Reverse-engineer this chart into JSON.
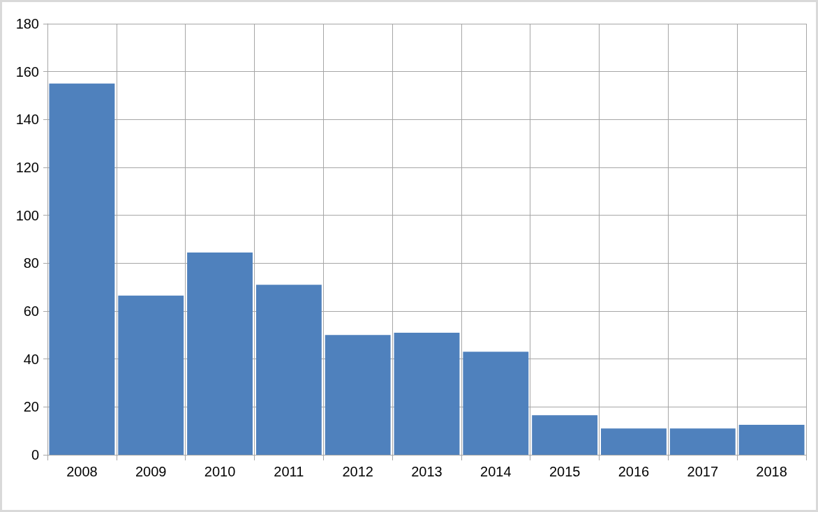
{
  "chart_data": {
    "type": "bar",
    "categories": [
      "2008",
      "2009",
      "2010",
      "2011",
      "2012",
      "2013",
      "2014",
      "2015",
      "2016",
      "2017",
      "2018"
    ],
    "values": [
      155,
      66.5,
      84.5,
      71,
      50,
      51,
      43,
      16.5,
      11,
      11,
      12.5
    ],
    "color": "#4f81bd",
    "ylim": [
      0,
      180
    ],
    "yticks": [
      0,
      20,
      40,
      60,
      80,
      100,
      120,
      140,
      160,
      180
    ],
    "grid": true
  }
}
